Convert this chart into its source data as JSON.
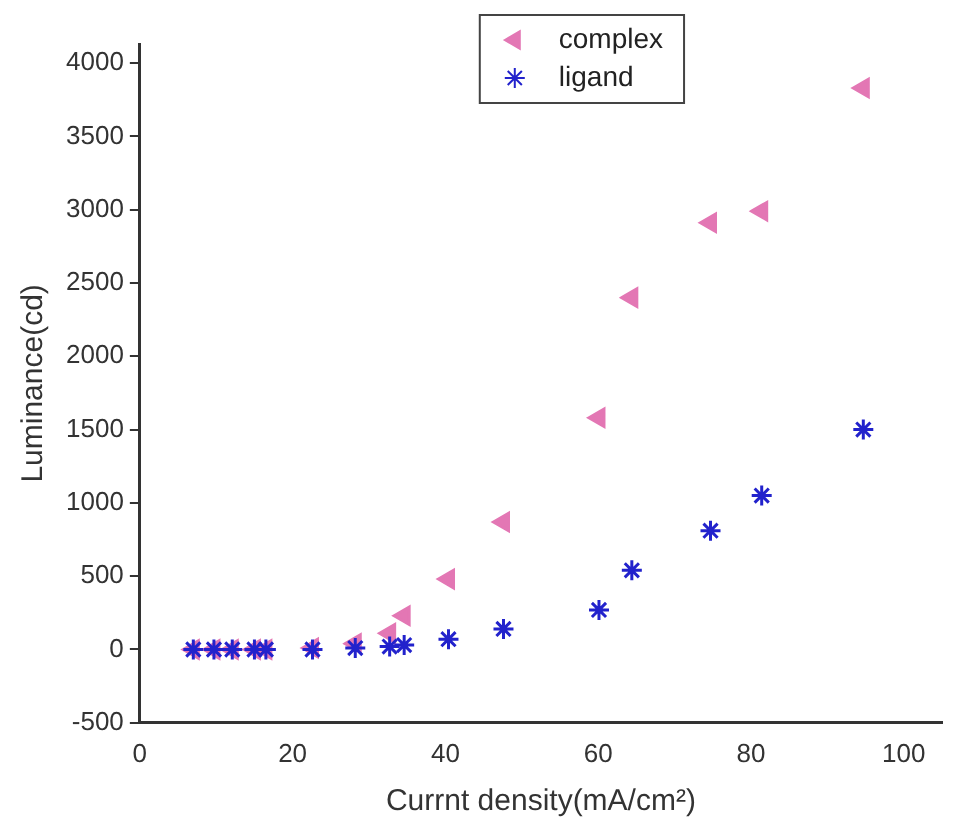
{
  "chart_data": {
    "type": "scatter",
    "xlabel": "Currnt density(mA/cm²)",
    "ylabel": "Luminance(cd)",
    "xlim": [
      0,
      105
    ],
    "xticks": [
      0,
      20,
      40,
      60,
      80,
      100
    ],
    "ylim": [
      -500,
      4130
    ],
    "yticks": [
      -500,
      0,
      500,
      1000,
      1500,
      2000,
      2500,
      3000,
      3500,
      4000
    ],
    "grid": false,
    "legend": "top",
    "series": [
      {
        "name": "complex",
        "color": "#e377b4",
        "marker": "triangle",
        "x": [
          7.0,
          9.7,
          12.1,
          15.0,
          16.5,
          22.6,
          28.2,
          32.7,
          34.6,
          40.4,
          47.6,
          60.1,
          64.4,
          74.7,
          81.4,
          94.7
        ],
        "values": [
          0,
          0,
          0,
          0,
          0,
          10,
          40,
          110,
          230,
          480,
          870,
          1580,
          2400,
          2910,
          2990,
          3830
        ]
      },
      {
        "name": "ligand",
        "color": "#2222cc",
        "marker": "cross",
        "x": [
          7.0,
          9.7,
          12.1,
          15.0,
          16.5,
          22.6,
          28.2,
          32.7,
          34.6,
          40.4,
          47.6,
          60.1,
          64.4,
          74.7,
          81.4,
          94.7
        ],
        "values": [
          0,
          0,
          0,
          0,
          0,
          0,
          10,
          20,
          30,
          70,
          140,
          270,
          540,
          810,
          1050,
          1500
        ]
      }
    ]
  }
}
